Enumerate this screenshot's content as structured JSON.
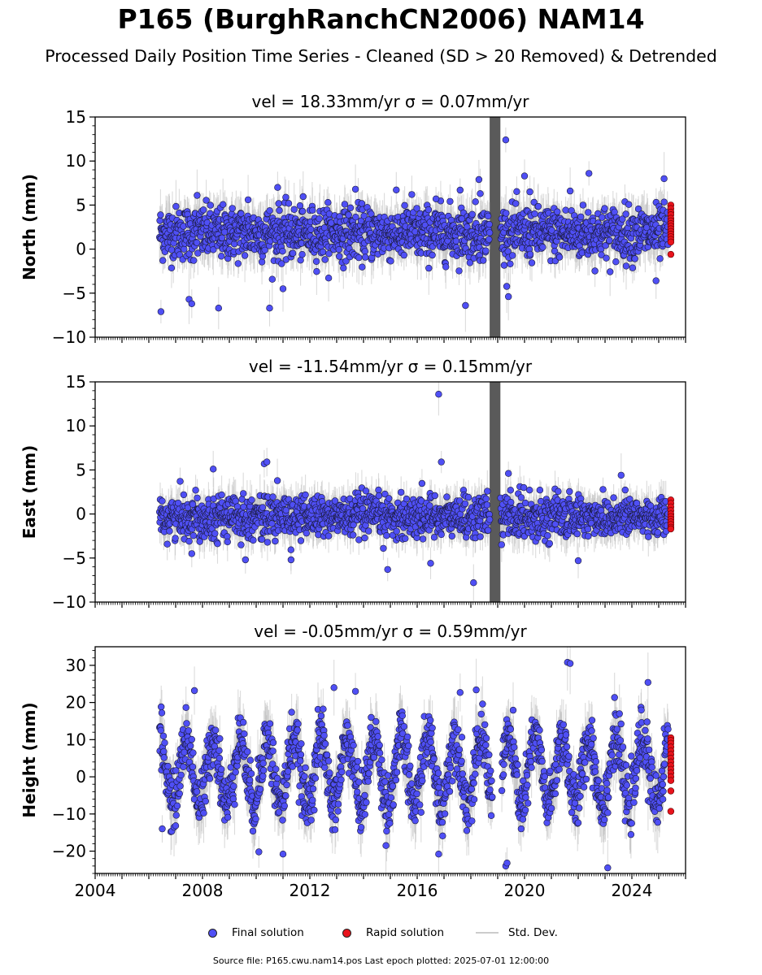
{
  "figure": {
    "title": "P165 (BurghRanchCN2006) NAM14",
    "subtitle": "Processed Daily Position Time Series - Cleaned (SD > 20 Removed) & Detrended",
    "footer": "Source file: P165.cwu.nam14.pos  Last epoch plotted: 2025-07-01 12:00:00"
  },
  "legend": {
    "final": "Final solution",
    "rapid": "Rapid solution",
    "std": "Std. Dev."
  },
  "colors": {
    "final": "#4f4ff5",
    "rapid": "#e8131c",
    "std": "#bdbdbd",
    "edge": "#1a1a3a"
  },
  "chart_data": [
    {
      "type": "scatter",
      "name": "north",
      "title": "vel = 18.33mm/yr   σ = 0.07mm/yr",
      "ylabel": "North (mm)",
      "xlim": [
        2004.0,
        2026.0
      ],
      "ylim": [
        -10,
        15
      ],
      "yticks": [
        -10,
        -5,
        0,
        5,
        10,
        15
      ],
      "xticks": [
        "2004",
        "2008",
        "2012",
        "2016",
        "2020",
        "2024"
      ],
      "series": [
        {
          "kind": "final",
          "x_range": [
            2006.4,
            2025.35
          ],
          "mean": 1.8,
          "scatter": 2.0,
          "typical_error": 2.2,
          "outliers": [
            [
              2006.45,
              -7.1
            ],
            [
              2007.5,
              -5.7
            ],
            [
              2007.6,
              -6.2
            ],
            [
              2007.8,
              6.1
            ],
            [
              2008.6,
              -6.7
            ],
            [
              2009.7,
              5.6
            ],
            [
              2010.5,
              -6.7
            ],
            [
              2010.8,
              7.0
            ],
            [
              2011.0,
              -4.5
            ],
            [
              2013.7,
              6.8
            ],
            [
              2015.8,
              6.2
            ],
            [
              2016.7,
              5.7
            ],
            [
              2017.6,
              6.7
            ],
            [
              2017.8,
              -6.4
            ],
            [
              2018.3,
              7.9
            ],
            [
              2018.35,
              6.3
            ],
            [
              2019.3,
              12.4
            ],
            [
              2019.4,
              -5.4
            ],
            [
              2020.0,
              8.3
            ],
            [
              2020.2,
              6.5
            ],
            [
              2021.7,
              6.6
            ],
            [
              2022.4,
              8.6
            ],
            [
              2024.9,
              -3.6
            ],
            [
              2025.2,
              8.0
            ]
          ]
        },
        {
          "kind": "rapid",
          "x": 2025.45,
          "values": [
            5.0,
            4.6,
            4.2,
            3.9,
            3.5,
            3.2,
            2.9,
            2.6,
            2.3,
            2.0,
            1.7,
            1.4,
            1.1,
            0.8,
            -0.6
          ]
        },
        {
          "kind": "gap",
          "x_range": [
            2018.7,
            2019.1
          ],
          "note": "large std dev band"
        }
      ]
    },
    {
      "type": "scatter",
      "name": "east",
      "title": "vel = -11.54mm/yr   σ = 0.15mm/yr",
      "ylabel": "East (mm)",
      "xlim": [
        2004.0,
        2026.0
      ],
      "ylim": [
        -10,
        15
      ],
      "yticks": [
        -10,
        -5,
        0,
        5,
        10,
        15
      ],
      "xticks": [
        "2004",
        "2008",
        "2012",
        "2016",
        "2020",
        "2024"
      ],
      "series": [
        {
          "kind": "final",
          "x_range": [
            2006.4,
            2025.35
          ],
          "mean": -0.3,
          "scatter": 1.6,
          "typical_error": 1.8,
          "outliers": [
            [
              2007.6,
              -4.5
            ],
            [
              2008.4,
              5.1
            ],
            [
              2009.6,
              -5.2
            ],
            [
              2010.3,
              5.7
            ],
            [
              2010.4,
              5.9
            ],
            [
              2011.3,
              -5.2
            ],
            [
              2014.9,
              -6.3
            ],
            [
              2016.5,
              -5.6
            ],
            [
              2016.8,
              13.6
            ],
            [
              2016.9,
              5.9
            ],
            [
              2018.1,
              -7.8
            ],
            [
              2019.4,
              4.6
            ],
            [
              2022.0,
              -5.3
            ],
            [
              2023.6,
              4.4
            ]
          ]
        },
        {
          "kind": "rapid",
          "x": 2025.45,
          "values": [
            1.6,
            1.2,
            0.8,
            0.4,
            0.0,
            -0.3,
            -0.6,
            -0.9,
            -1.2,
            -1.5,
            -1.7
          ]
        },
        {
          "kind": "gap",
          "x_range": [
            2018.7,
            2019.1
          ],
          "note": "large std dev band"
        }
      ]
    },
    {
      "type": "scatter",
      "name": "height",
      "title": "vel = -0.05mm/yr   σ = 0.59mm/yr",
      "ylabel": "Height (mm)",
      "xlim": [
        2004.0,
        2026.0
      ],
      "ylim": [
        -26,
        35
      ],
      "yticks": [
        -20,
        -10,
        0,
        10,
        20,
        30
      ],
      "xticks": [
        "2004",
        "2008",
        "2012",
        "2016",
        "2020",
        "2024"
      ],
      "series": [
        {
          "kind": "final",
          "x_range": [
            2006.4,
            2025.35
          ],
          "mean": 1.5,
          "seasonal_amplitude": 9.0,
          "scatter": 5.0,
          "typical_error": 6.0,
          "outliers": [
            [
              2006.5,
              -14.0
            ],
            [
              2007.7,
              23.2
            ],
            [
              2010.1,
              -20.2
            ],
            [
              2011.0,
              -20.8
            ],
            [
              2012.9,
              24.0
            ],
            [
              2013.7,
              23.0
            ],
            [
              2016.8,
              -20.8
            ],
            [
              2017.6,
              22.7
            ],
            [
              2018.2,
              23.4
            ],
            [
              2019.3,
              -24.0
            ],
            [
              2019.35,
              -23.2
            ],
            [
              2021.6,
              30.8
            ],
            [
              2021.7,
              30.5
            ],
            [
              2023.1,
              -24.5
            ],
            [
              2024.6,
              25.4
            ]
          ]
        },
        {
          "kind": "rapid",
          "x": 2025.45,
          "values": [
            10.5,
            9.8,
            9.0,
            8.0,
            7.0,
            6.0,
            5.0,
            4.0,
            3.0,
            2.0,
            1.0,
            0.0,
            -1.0,
            -3.8,
            -9.3
          ]
        },
        {
          "kind": "gap",
          "x_range": [
            2018.8,
            2019.15
          ],
          "note": "data gap"
        }
      ]
    }
  ]
}
